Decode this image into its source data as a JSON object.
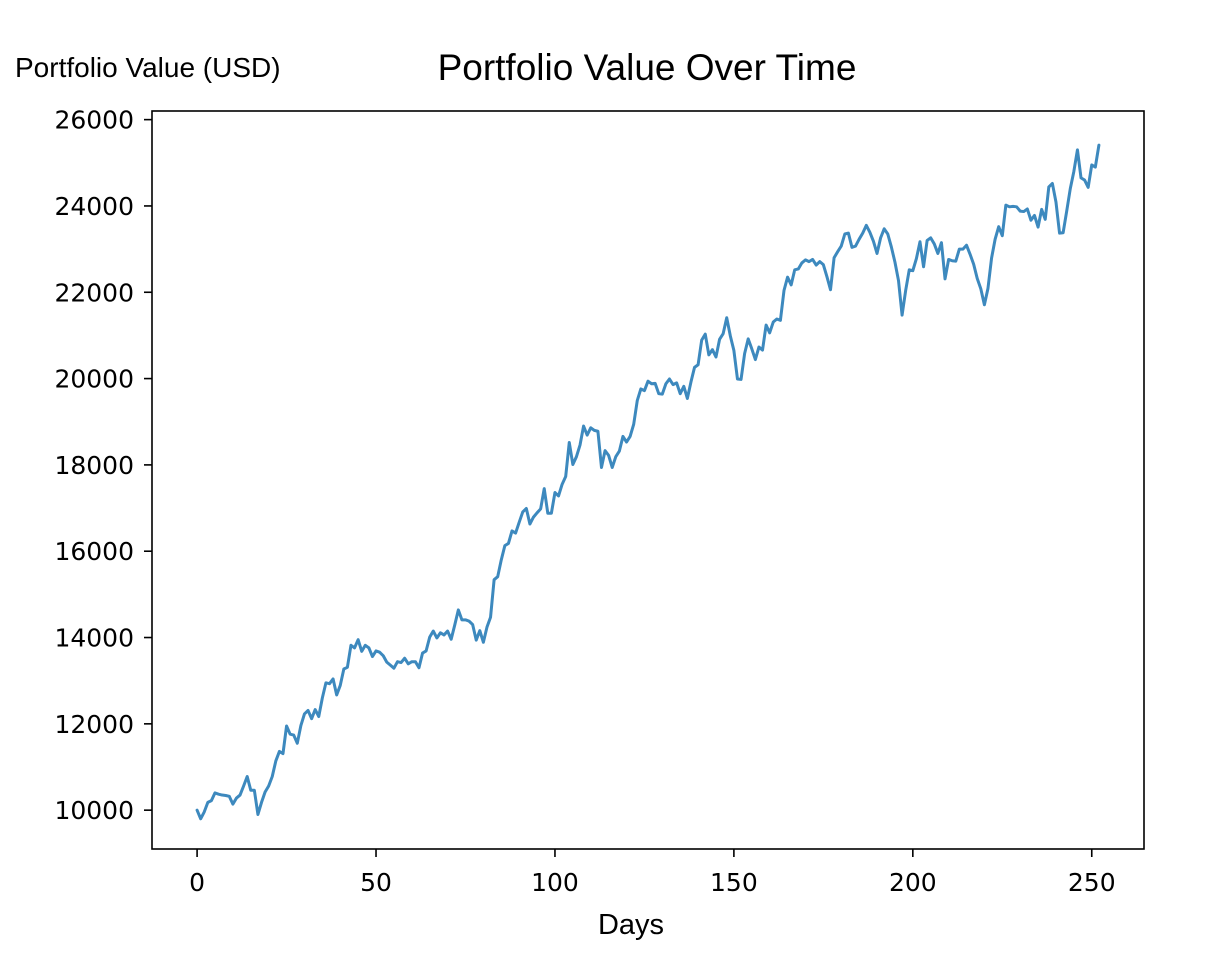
{
  "chart_data": {
    "type": "line",
    "title": "Portfolio Value Over Time",
    "xlabel": "Days",
    "ylabel": "Portfolio Value (USD)",
    "xlim": [
      -12.6,
      264.6
    ],
    "ylim": [
      9100,
      26200
    ],
    "x_ticks": [
      0,
      50,
      100,
      150,
      200,
      250
    ],
    "y_ticks": [
      10000,
      12000,
      14000,
      16000,
      18000,
      20000,
      22000,
      24000,
      26000
    ],
    "grid": false,
    "legend": "none",
    "series": [
      {
        "color": "#3d89be",
        "x": [
          0,
          1,
          2,
          3,
          4,
          5,
          6,
          7,
          8,
          9,
          10,
          11,
          12,
          13,
          14,
          15,
          16,
          17,
          18,
          19,
          20,
          21,
          22,
          23,
          24,
          25,
          26,
          27,
          28,
          29,
          30,
          31,
          32,
          33,
          34,
          35,
          36,
          37,
          38,
          39,
          40,
          41,
          42,
          43,
          44,
          45,
          46,
          47,
          48,
          49,
          50,
          51,
          52,
          53,
          54,
          55,
          56,
          57,
          58,
          59,
          60,
          61,
          62,
          63,
          64,
          65,
          66,
          67,
          68,
          69,
          70,
          71,
          72,
          73,
          74,
          75,
          76,
          77,
          78,
          79,
          80,
          81,
          82,
          83,
          84,
          85,
          86,
          87,
          88,
          89,
          90,
          91,
          92,
          93,
          94,
          95,
          96,
          97,
          98,
          99,
          100,
          101,
          102,
          103,
          104,
          105,
          106,
          107,
          108,
          109,
          110,
          111,
          112,
          113,
          114,
          115,
          116,
          117,
          118,
          119,
          120,
          121,
          122,
          123,
          124,
          125,
          126,
          127,
          128,
          129,
          130,
          131,
          132,
          133,
          134,
          135,
          136,
          137,
          138,
          139,
          140,
          141,
          142,
          143,
          144,
          145,
          146,
          147,
          148,
          149,
          150,
          151,
          152,
          153,
          154,
          155,
          156,
          157,
          158,
          159,
          160,
          161,
          162,
          163,
          164,
          165,
          166,
          167,
          168,
          169,
          170,
          171,
          172,
          173,
          174,
          175,
          176,
          177,
          178,
          179,
          180,
          181,
          182,
          183,
          184,
          185,
          186,
          187,
          188,
          189,
          190,
          191,
          192,
          193,
          194,
          195,
          196,
          197,
          198,
          199,
          200,
          201,
          202,
          203,
          204,
          205,
          206,
          207,
          208,
          209,
          210,
          211,
          212,
          213,
          214,
          215,
          216,
          217,
          218,
          219,
          220,
          221,
          222,
          223,
          224,
          225,
          226,
          227,
          228,
          229,
          230,
          231,
          232,
          233,
          234,
          235,
          236,
          237,
          238,
          239,
          240,
          241,
          242,
          243,
          244,
          245,
          246,
          247,
          248,
          249,
          250,
          251,
          252
        ],
        "y": [
          10000,
          9800,
          9960,
          10180,
          10220,
          10400,
          10370,
          10350,
          10340,
          10320,
          10140,
          10280,
          10350,
          10560,
          10780,
          10460,
          10460,
          9900,
          10180,
          10420,
          10560,
          10780,
          11140,
          11360,
          11310,
          11950,
          11760,
          11740,
          11550,
          11960,
          12230,
          12310,
          12120,
          12330,
          12170,
          12600,
          12950,
          12930,
          13040,
          12670,
          12890,
          13270,
          13310,
          13820,
          13760,
          13950,
          13680,
          13820,
          13760,
          13560,
          13690,
          13660,
          13580,
          13430,
          13360,
          13290,
          13440,
          13420,
          13520,
          13390,
          13440,
          13440,
          13300,
          13640,
          13690,
          14010,
          14150,
          13990,
          14110,
          14060,
          14150,
          13960,
          14290,
          14640,
          14410,
          14410,
          14380,
          14300,
          13940,
          14160,
          13890,
          14240,
          14470,
          15340,
          15410,
          15800,
          16130,
          16180,
          16470,
          16420,
          16670,
          16910,
          16990,
          16630,
          16790,
          16890,
          16980,
          17450,
          16880,
          16880,
          17360,
          17280,
          17550,
          17730,
          18520,
          18010,
          18190,
          18460,
          18900,
          18690,
          18860,
          18800,
          18780,
          17940,
          18330,
          18220,
          17940,
          18190,
          18320,
          18660,
          18530,
          18660,
          18940,
          19490,
          19760,
          19720,
          19940,
          19880,
          19890,
          19650,
          19640,
          19880,
          19990,
          19860,
          19900,
          19650,
          19820,
          19540,
          19920,
          20260,
          20320,
          20890,
          21030,
          20550,
          20670,
          20500,
          20910,
          21040,
          21410,
          20990,
          20650,
          19990,
          19980,
          20580,
          20920,
          20690,
          20440,
          20730,
          20660,
          21240,
          21060,
          21310,
          21380,
          21350,
          22040,
          22350,
          22170,
          22520,
          22540,
          22680,
          22750,
          22710,
          22760,
          22630,
          22710,
          22640,
          22360,
          22060,
          22800,
          22940,
          23070,
          23350,
          23370,
          23040,
          23070,
          23230,
          23370,
          23550,
          23390,
          23180,
          22900,
          23260,
          23470,
          23350,
          23050,
          22700,
          22270,
          21470,
          22040,
          22520,
          22500,
          22780,
          23170,
          22590,
          23200,
          23260,
          23120,
          22900,
          23150,
          22310,
          22760,
          22730,
          22720,
          23000,
          23000,
          23090,
          22880,
          22650,
          22320,
          22080,
          21710,
          22090,
          22790,
          23230,
          23520,
          23310,
          24020,
          23980,
          23990,
          23980,
          23880,
          23870,
          23930,
          23670,
          23780,
          23510,
          23920,
          23690,
          24440,
          24520,
          24090,
          23370,
          23380,
          23880,
          24400,
          24800,
          25300,
          24650,
          24600,
          24430,
          24950,
          24900,
          25410
        ]
      }
    ]
  }
}
